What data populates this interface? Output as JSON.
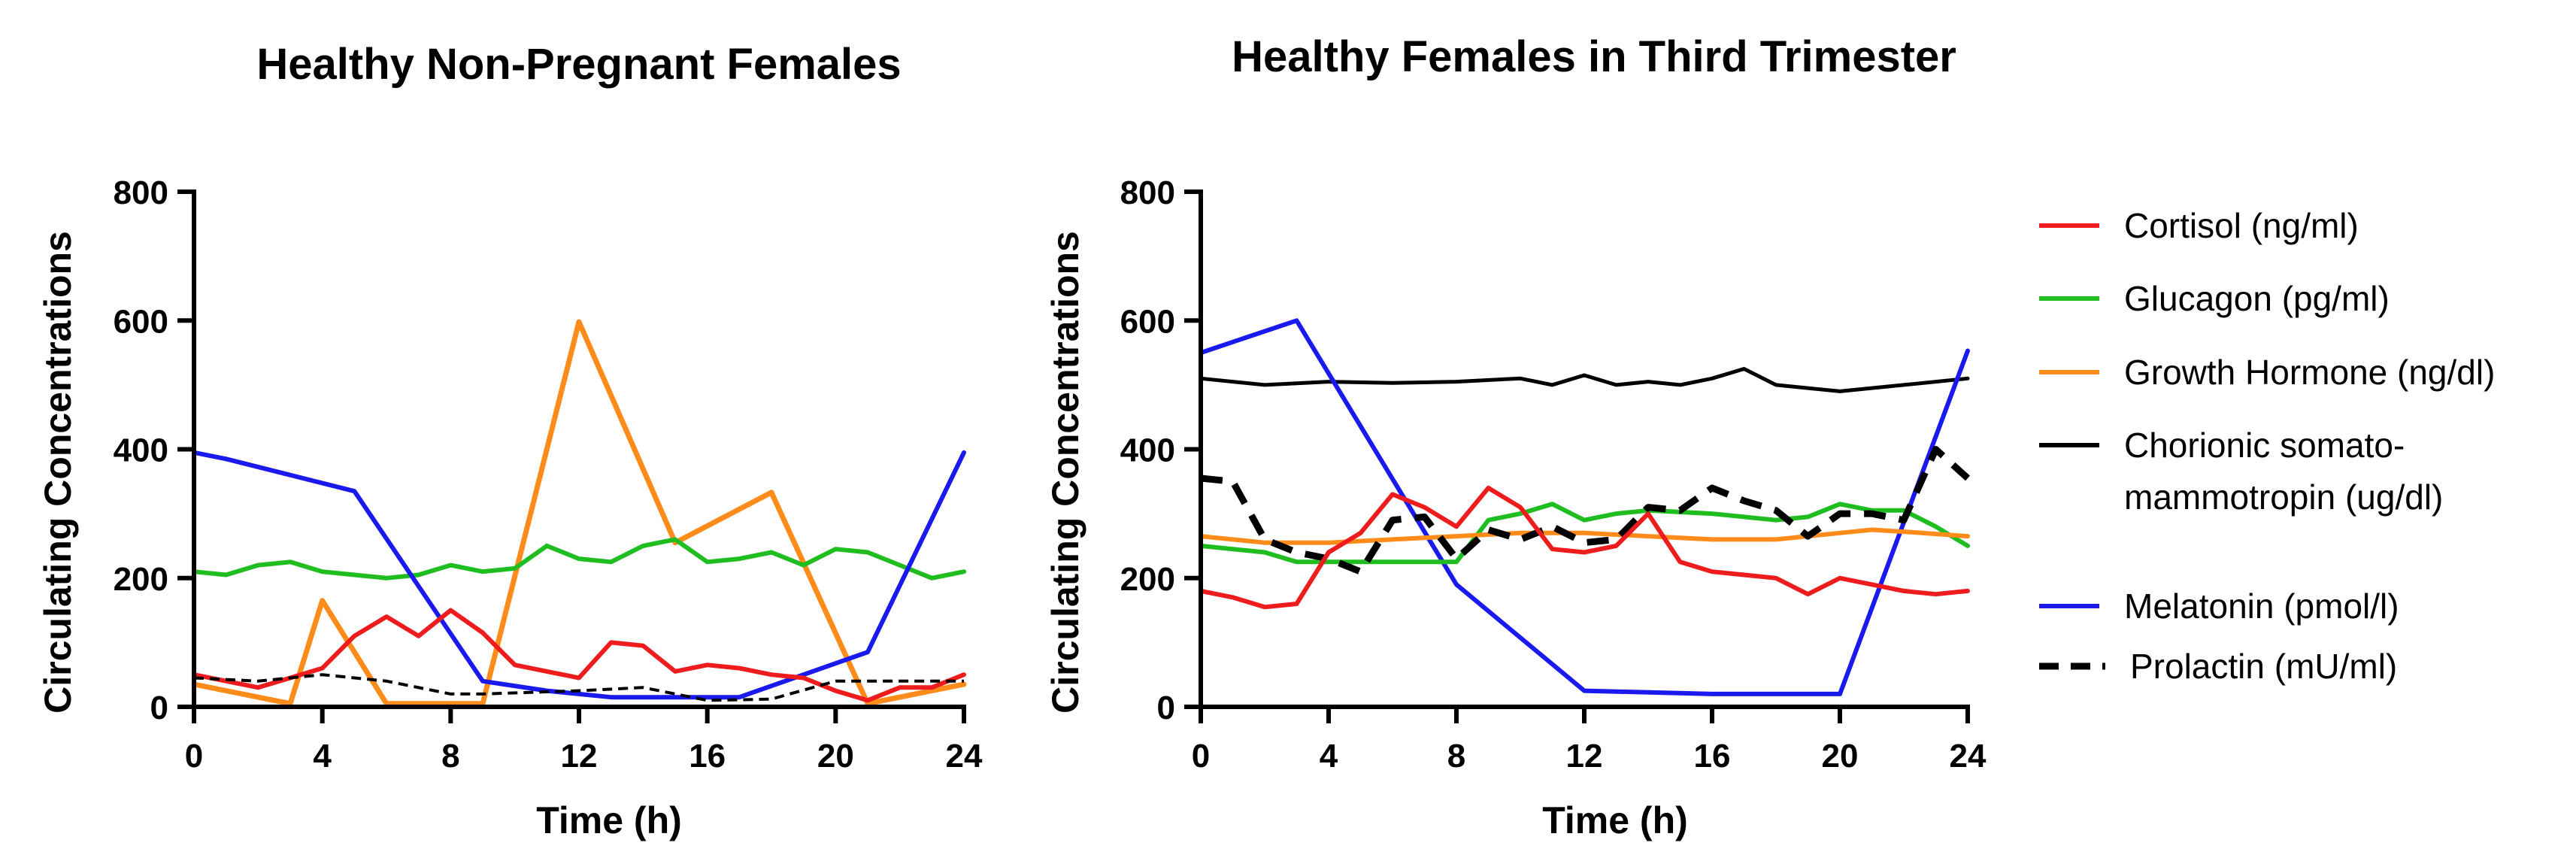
{
  "colors": {
    "cortisol": "#ee1c1c",
    "glucagon": "#1fbd1f",
    "growth": "#ff8c1a",
    "chorionic": "#000000",
    "melatonin": "#1a1aee",
    "prolactin": "#000000"
  },
  "legend": {
    "items": [
      {
        "label": "Cortisol (ng/ml)",
        "color": "#ee1c1c",
        "dashed": false
      },
      {
        "label": "Glucagon (pg/ml)",
        "color": "#1fbd1f",
        "dashed": false
      },
      {
        "label": "Growth Hormone (ng/dl)",
        "color": "#ff8c1a",
        "dashed": false
      },
      {
        "label": "Chorionic somato-",
        "label2": "mammotropin (ug/dl)",
        "color": "#000000",
        "dashed": false
      },
      {
        "label": "Melatonin (pmol/l)",
        "color": "#1a1aee",
        "dashed": false
      },
      {
        "label": "Prolactin (mU/ml)",
        "color": "#000000",
        "dashed": true
      }
    ]
  },
  "chart_data": [
    {
      "type": "line",
      "title": "Healthy Non-Pregnant  Females",
      "xlabel": "Time (h)",
      "ylabel": "Circulating Concentrations",
      "xlim": [
        0,
        24
      ],
      "ylim": [
        0,
        800
      ],
      "xticks": [
        0,
        4,
        8,
        12,
        16,
        20,
        24
      ],
      "yticks": [
        0,
        200,
        400,
        600,
        800
      ],
      "series": [
        {
          "name": "Growth Hormone (ng/dl)",
          "color": "#ff8c1a",
          "dashed": false,
          "width": 7,
          "x": [
            0,
            3,
            4,
            6,
            9,
            12,
            15,
            18,
            21,
            24
          ],
          "y": [
            35,
            5,
            165,
            5,
            5,
            598,
            255,
            333,
            5,
            35
          ]
        },
        {
          "name": "Glucagon (pg/ml)",
          "color": "#1fbd1f",
          "dashed": false,
          "width": 6,
          "x": [
            0,
            1,
            2,
            3,
            4,
            5,
            6,
            7,
            8,
            9,
            10,
            11,
            12,
            13,
            14,
            15,
            16,
            17,
            18,
            19,
            20,
            21,
            22,
            23,
            24
          ],
          "y": [
            210,
            205,
            220,
            225,
            210,
            205,
            200,
            205,
            220,
            210,
            215,
            250,
            230,
            225,
            250,
            260,
            225,
            230,
            240,
            220,
            245,
            240,
            220,
            200,
            210
          ]
        },
        {
          "name": "Melatonin (pmol/l)",
          "color": "#1a1aee",
          "dashed": false,
          "width": 6,
          "x": [
            0,
            1,
            5,
            9,
            11,
            13,
            15,
            16,
            17,
            21,
            24
          ],
          "y": [
            395,
            385,
            335,
            40,
            25,
            15,
            15,
            15,
            15,
            85,
            395
          ]
        },
        {
          "name": "Cortisol (ng/ml)",
          "color": "#ee1c1c",
          "dashed": false,
          "width": 6,
          "x": [
            0,
            2,
            3,
            4,
            5,
            6,
            7,
            8,
            9,
            10,
            11,
            12,
            13,
            14,
            15,
            16,
            17,
            18,
            19,
            20,
            21,
            22,
            23,
            24
          ],
          "y": [
            50,
            30,
            45,
            60,
            110,
            140,
            110,
            150,
            115,
            65,
            55,
            45,
            100,
            95,
            55,
            65,
            60,
            50,
            45,
            25,
            10,
            30,
            30,
            50
          ]
        },
        {
          "name": "Prolactin (mU/ml)",
          "color": "#000000",
          "dashed": true,
          "width": 4,
          "x": [
            0,
            2,
            4,
            6,
            8,
            9,
            12,
            14,
            16,
            18,
            20,
            22,
            24
          ],
          "y": [
            45,
            40,
            50,
            40,
            20,
            20,
            25,
            30,
            10,
            12,
            40,
            40,
            40
          ]
        }
      ]
    },
    {
      "type": "line",
      "title": "Healthy Females in Third Trimester",
      "xlabel": "Time (h)",
      "ylabel": "Circulating Concentrations",
      "xlim": [
        0,
        24
      ],
      "ylim": [
        0,
        800
      ],
      "xticks": [
        0,
        4,
        8,
        12,
        16,
        20,
        24
      ],
      "yticks": [
        0,
        200,
        400,
        600,
        800
      ],
      "series": [
        {
          "name": "Chorionic somato- mammotropin (ug/dl)",
          "color": "#000000",
          "dashed": false,
          "width": 5,
          "x": [
            0,
            2,
            4,
            6,
            8,
            10,
            11,
            12,
            13,
            14,
            15,
            16,
            17,
            18,
            20,
            22,
            24
          ],
          "y": [
            510,
            500,
            505,
            503,
            505,
            510,
            500,
            515,
            500,
            505,
            500,
            510,
            525,
            500,
            490,
            500,
            510
          ]
        },
        {
          "name": "Melatonin (pmol/l)",
          "color": "#1a1aee",
          "dashed": false,
          "width": 6,
          "x": [
            0,
            3,
            8,
            12,
            16,
            20,
            24
          ],
          "y": [
            550,
            600,
            190,
            25,
            20,
            20,
            553
          ]
        },
        {
          "name": "Glucagon (pg/ml)",
          "color": "#1fbd1f",
          "dashed": false,
          "width": 6,
          "x": [
            0,
            2,
            3,
            4,
            6,
            8,
            9,
            10,
            11,
            12,
            13,
            14,
            16,
            18,
            19,
            20,
            21,
            22,
            23,
            24
          ],
          "y": [
            250,
            240,
            225,
            225,
            225,
            225,
            290,
            300,
            315,
            290,
            300,
            305,
            300,
            290,
            295,
            315,
            305,
            305,
            280,
            250
          ]
        },
        {
          "name": "Growth Hormone (ng/dl)",
          "color": "#ff8c1a",
          "dashed": false,
          "width": 6,
          "x": [
            0,
            2,
            4,
            6,
            8,
            10,
            12,
            14,
            16,
            18,
            20,
            21,
            22,
            24
          ],
          "y": [
            265,
            255,
            255,
            260,
            265,
            270,
            270,
            265,
            260,
            260,
            270,
            275,
            272,
            265
          ]
        },
        {
          "name": "Prolactin (mU/ml)",
          "color": "#000000",
          "dashed": true,
          "width": 9,
          "x": [
            0,
            1,
            2,
            3,
            4,
            5,
            6,
            7,
            8,
            9,
            10,
            11,
            12,
            13,
            14,
            15,
            16,
            17,
            18,
            19,
            20,
            21,
            22,
            23,
            24
          ],
          "y": [
            355,
            350,
            260,
            240,
            230,
            210,
            290,
            295,
            230,
            275,
            260,
            280,
            255,
            260,
            310,
            305,
            340,
            320,
            305,
            265,
            300,
            300,
            290,
            400,
            355
          ]
        },
        {
          "name": "Cortisol (ng/ml)",
          "color": "#ee1c1c",
          "dashed": false,
          "width": 6,
          "x": [
            0,
            1,
            2,
            3,
            4,
            5,
            6,
            7,
            8,
            9,
            10,
            11,
            12,
            13,
            14,
            15,
            16,
            17,
            18,
            19,
            20,
            21,
            22,
            23,
            24
          ],
          "y": [
            180,
            170,
            155,
            160,
            240,
            270,
            330,
            310,
            280,
            340,
            310,
            245,
            240,
            250,
            300,
            225,
            210,
            205,
            200,
            175,
            200,
            190,
            180,
            175,
            180
          ]
        }
      ]
    }
  ]
}
